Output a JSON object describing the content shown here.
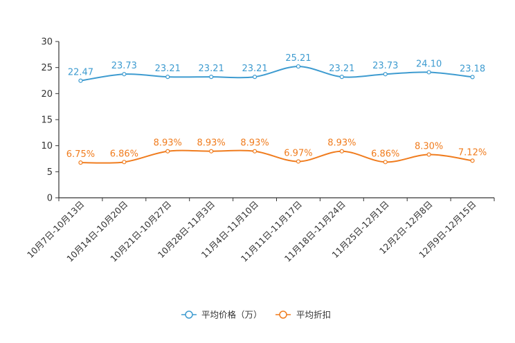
{
  "chart_data": {
    "type": "line",
    "title": "",
    "xlabel": "",
    "ylabel": "",
    "ylim": [
      0,
      30
    ],
    "yticks": [
      0,
      5,
      10,
      15,
      20,
      25,
      30
    ],
    "grid": false,
    "legend_position": "bottom-center",
    "categories": [
      "10月7日-10月13日",
      "10月14日-10月20日",
      "10月21日-10月27日",
      "10月28日-11月3日",
      "11月4日-11月10日",
      "11月11日-11月17日",
      "11月18日-11月24日",
      "11月25日-12月1日",
      "12月2日-12月8日",
      "12月9日-12月15日"
    ],
    "series": [
      {
        "name": "平均价格（万）",
        "color": "#3d9bd0",
        "values": [
          22.47,
          23.73,
          23.21,
          23.21,
          23.21,
          25.21,
          23.21,
          23.73,
          24.1,
          23.18
        ],
        "labels": [
          "22.47",
          "23.73",
          "23.21",
          "23.21",
          "23.21",
          "25.21",
          "23.21",
          "23.73",
          "24.10",
          "23.18"
        ]
      },
      {
        "name": "平均折扣",
        "color": "#f07c1e",
        "values": [
          6.75,
          6.86,
          8.93,
          8.93,
          8.93,
          6.97,
          8.93,
          6.86,
          8.3,
          7.12
        ],
        "labels": [
          "6.75%",
          "6.86%",
          "8.93%",
          "8.93%",
          "8.93%",
          "6.97%",
          "8.93%",
          "6.86%",
          "8.30%",
          "7.12%"
        ]
      }
    ]
  }
}
